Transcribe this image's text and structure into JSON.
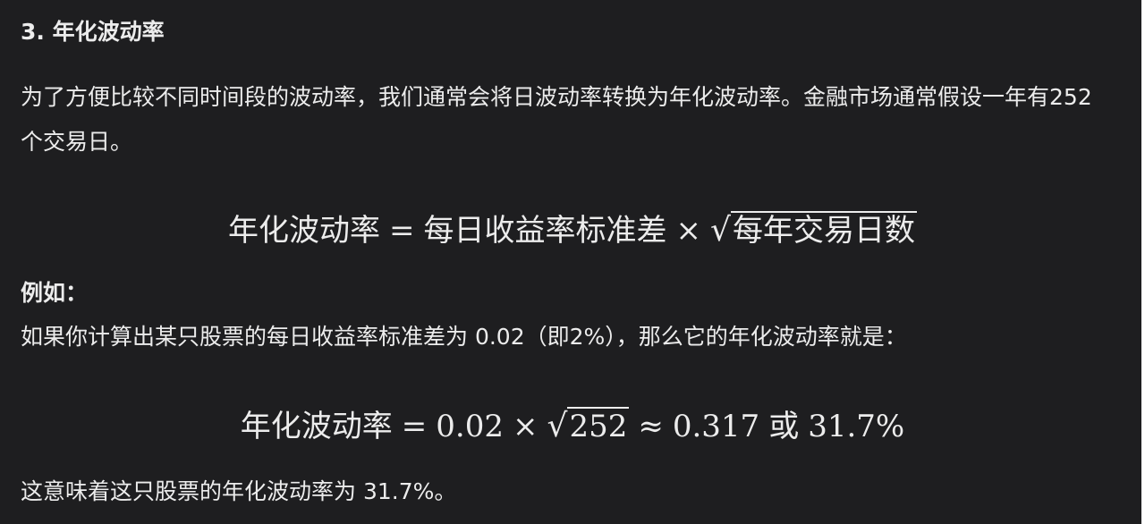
{
  "heading": "3. 年化波动率",
  "intro": "为了方便比较不同时间段的波动率，我们通常会将日波动率转换为年化波动率。金融市场通常假设一年有252个交易日。",
  "formula1": {
    "lhs": "年化波动率",
    "eq": "=",
    "term": "每日收益率标准差",
    "times": "×",
    "sqrt_sign": "√",
    "radicand": "每年交易日数"
  },
  "example_label": "例如：",
  "example_text": "如果你计算出某只股票的每日收益率标准差为 0.02（即2%），那么它的年化波动率就是：",
  "formula2": {
    "lhs": "年化波动率",
    "eq": "=",
    "factor": "0.02",
    "times": "×",
    "sqrt_sign": "√",
    "radicand": "252",
    "approx": "≈",
    "result": "0.317",
    "or": "或",
    "percent": "31.7%"
  },
  "conclusion": "这意味着这只股票的年化波动率为 31.7%。"
}
